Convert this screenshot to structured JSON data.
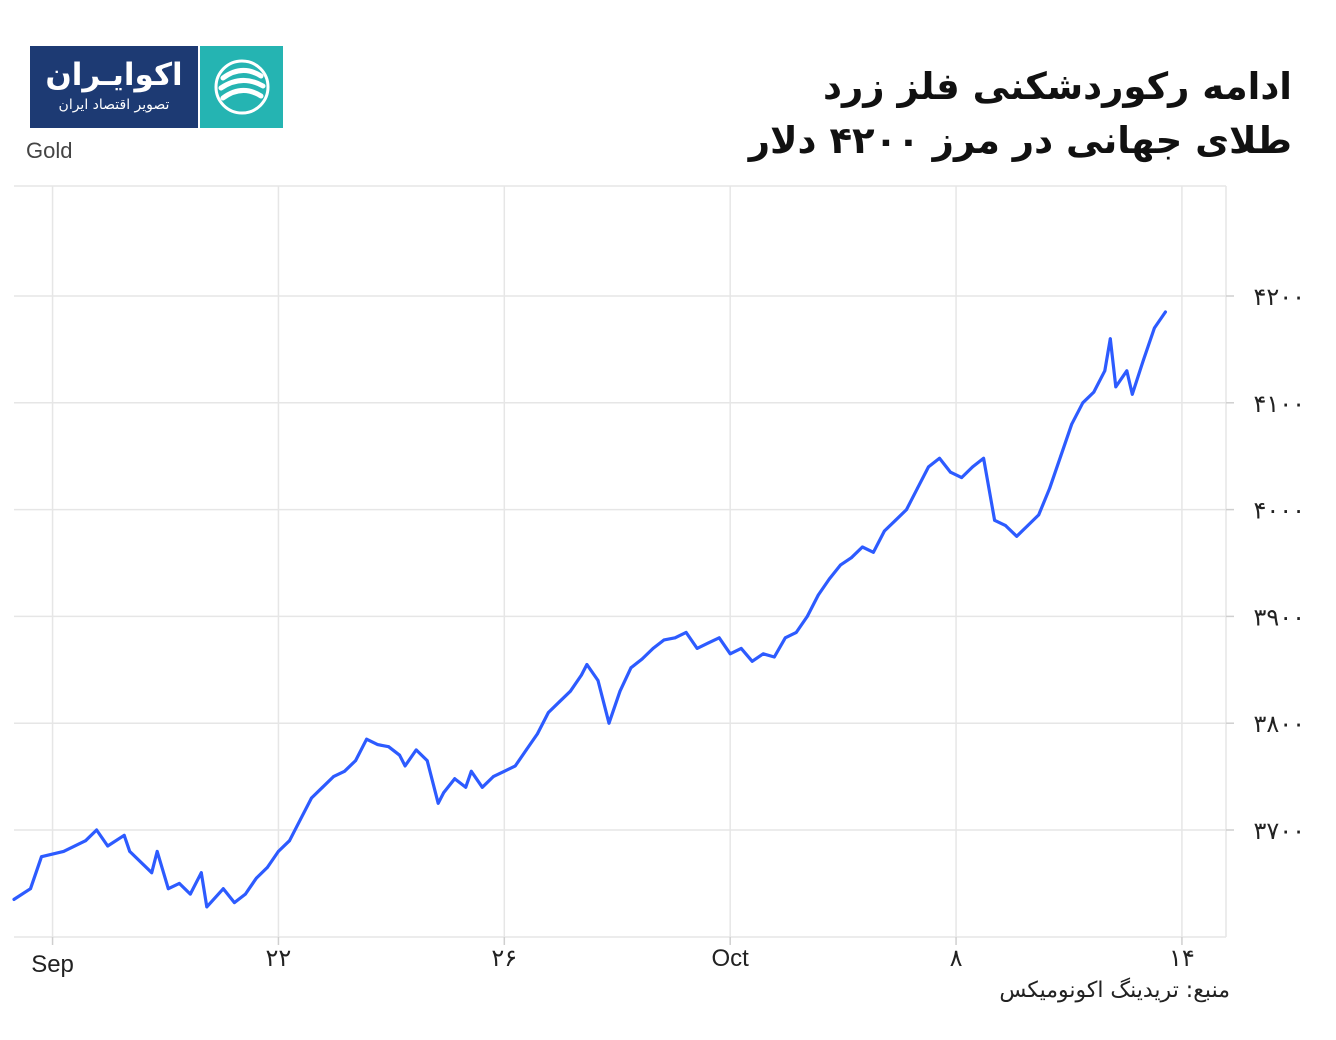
{
  "logo": {
    "name": "اکوایـران",
    "subtitle": "تصویر اقتصاد ایران",
    "icon": "ecoiran-swirl-icon"
  },
  "title_line1": "ادامه رکوردشکنی فلز زرد",
  "title_line2": "طلای جهانی در مرز ۴۲۰۰ دلار",
  "source": "منبع: تریدینگ اکونومیکس",
  "colors": {
    "line": "#2d5bff",
    "grid": "#e6e6e6",
    "logo_bg": "#1d3a73",
    "logo_mark": "#25b4b2"
  },
  "chart_data": {
    "type": "line",
    "ylabel": "Gold",
    "ylim": [
      3600,
      4300
    ],
    "grid": true,
    "x_tick_labels": [
      "Sep",
      "۲۲",
      "۲۶",
      "Oct",
      "۸",
      "۱۴"
    ],
    "y_tick_labels": [
      "۴۲۰۰",
      "۴۱۰۰",
      "۴۰۰۰",
      "۳۹۰۰",
      "۳۸۰۰",
      "۳۷۰۰"
    ],
    "y_tick_values": [
      4200,
      4100,
      4000,
      3900,
      3800,
      3700
    ],
    "series": [
      {
        "points": [
          [
            0,
            3635
          ],
          [
            3,
            3645
          ],
          [
            5,
            3675
          ],
          [
            9,
            3680
          ],
          [
            13,
            3690
          ],
          [
            15,
            3700
          ],
          [
            17,
            3685
          ],
          [
            20,
            3695
          ],
          [
            21,
            3680
          ],
          [
            25,
            3660
          ],
          [
            26,
            3680
          ],
          [
            28,
            3645
          ],
          [
            30,
            3650
          ],
          [
            32,
            3640
          ],
          [
            34,
            3660
          ],
          [
            35,
            3628
          ],
          [
            38,
            3645
          ],
          [
            40,
            3632
          ],
          [
            42,
            3640
          ],
          [
            44,
            3655
          ],
          [
            46,
            3665
          ],
          [
            48,
            3680
          ],
          [
            50,
            3690
          ],
          [
            52,
            3710
          ],
          [
            54,
            3730
          ],
          [
            56,
            3740
          ],
          [
            58,
            3750
          ],
          [
            60,
            3755
          ],
          [
            62,
            3765
          ],
          [
            64,
            3785
          ],
          [
            66,
            3780
          ],
          [
            68,
            3778
          ],
          [
            70,
            3770
          ],
          [
            71,
            3760
          ],
          [
            73,
            3775
          ],
          [
            75,
            3765
          ],
          [
            77,
            3725
          ],
          [
            78,
            3735
          ],
          [
            80,
            3748
          ],
          [
            82,
            3740
          ],
          [
            83,
            3755
          ],
          [
            85,
            3740
          ],
          [
            87,
            3750
          ],
          [
            89,
            3755
          ],
          [
            91,
            3760
          ],
          [
            93,
            3775
          ],
          [
            95,
            3790
          ],
          [
            97,
            3810
          ],
          [
            99,
            3820
          ],
          [
            101,
            3830
          ],
          [
            103,
            3845
          ],
          [
            104,
            3855
          ],
          [
            106,
            3840
          ],
          [
            108,
            3800
          ],
          [
            110,
            3830
          ],
          [
            112,
            3852
          ],
          [
            114,
            3860
          ],
          [
            116,
            3870
          ],
          [
            118,
            3878
          ],
          [
            120,
            3880
          ],
          [
            122,
            3885
          ],
          [
            124,
            3870
          ],
          [
            126,
            3875
          ],
          [
            128,
            3880
          ],
          [
            130,
            3865
          ],
          [
            132,
            3870
          ],
          [
            134,
            3858
          ],
          [
            136,
            3865
          ],
          [
            138,
            3862
          ],
          [
            140,
            3880
          ],
          [
            142,
            3885
          ],
          [
            144,
            3900
          ],
          [
            146,
            3920
          ],
          [
            148,
            3935
          ],
          [
            150,
            3948
          ],
          [
            152,
            3955
          ],
          [
            154,
            3965
          ],
          [
            156,
            3960
          ],
          [
            158,
            3980
          ],
          [
            160,
            3990
          ],
          [
            162,
            4000
          ],
          [
            164,
            4020
          ],
          [
            166,
            4040
          ],
          [
            168,
            4048
          ],
          [
            170,
            4035
          ],
          [
            172,
            4030
          ],
          [
            174,
            4040
          ],
          [
            176,
            4048
          ],
          [
            178,
            3990
          ],
          [
            180,
            3985
          ],
          [
            182,
            3975
          ],
          [
            184,
            3985
          ],
          [
            186,
            3995
          ],
          [
            188,
            4020
          ],
          [
            190,
            4050
          ],
          [
            192,
            4080
          ],
          [
            194,
            4100
          ],
          [
            196,
            4110
          ],
          [
            198,
            4130
          ],
          [
            199,
            4160
          ],
          [
            200,
            4115
          ],
          [
            202,
            4130
          ],
          [
            203,
            4108
          ],
          [
            205,
            4140
          ],
          [
            207,
            4170
          ],
          [
            209,
            4185
          ]
        ]
      }
    ]
  }
}
